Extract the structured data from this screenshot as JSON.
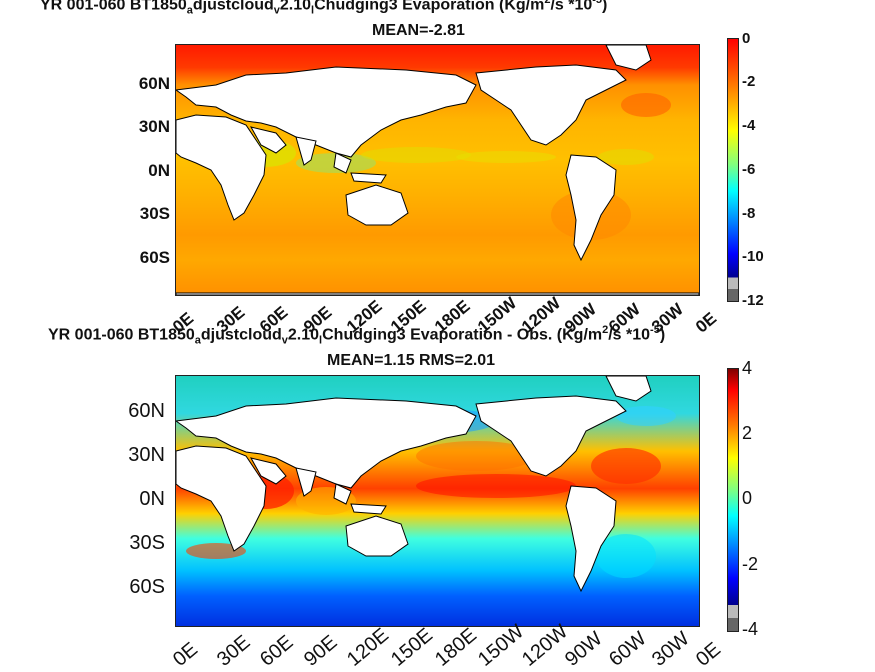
{
  "panel_top": {
    "title_line1_a": "YR 001-060 BT1850",
    "title_sub1": "a",
    "title_line1_b": "djustcloud",
    "title_sub2": "v",
    "title_line1_c": "2.10",
    "title_sub3": "l",
    "title_line1_d": "Chudging3  Evaporation (Kg/m",
    "title_sup1": "2",
    "title_line1_e": "/s *10",
    "title_sup2": "-5",
    "title_line1_f": ")",
    "title_line2": "MEAN=-2.81",
    "lat_labels": [
      "60N",
      "30N",
      "0N",
      "30S",
      "60S"
    ],
    "lon_labels": [
      "0E",
      "30E",
      "60E",
      "90E",
      "120E",
      "150E",
      "180E",
      "150W",
      "120W",
      "90W",
      "60W",
      "30W",
      "0E"
    ],
    "colorbar_labels": [
      "0",
      "-2",
      "-4",
      "-6",
      "-8",
      "-10",
      "-12"
    ]
  },
  "panel_bottom": {
    "title_line1_a": "YR 001-060 BT1850",
    "title_sub1": "a",
    "title_line1_b": "djustcloud",
    "title_sub2": "v",
    "title_line1_c": "2.10",
    "title_sub3": "l",
    "title_line1_d": "Chudging3 Evaporation - Obs. (Kg/m",
    "title_sup1": "2",
    "title_line1_e": "/s *10",
    "title_sup2": "-5",
    "title_line1_f": ")",
    "title_line2": "MEAN=1.15   RMS=2.01",
    "lat_labels": [
      "60N",
      "30N",
      "0N",
      "30S",
      "60S"
    ],
    "lon_labels": [
      "0E",
      "30E",
      "60E",
      "90E",
      "120E",
      "150E",
      "180E",
      "150W",
      "120W",
      "90W",
      "60W",
      "30W",
      "0E"
    ],
    "colorbar_labels": [
      "4",
      "2",
      "0",
      "-2",
      "-4"
    ]
  },
  "colors": {
    "land": "#ffffff",
    "coast": "#000000",
    "jet": [
      "#00008f",
      "#0000ff",
      "#0080ff",
      "#00ffff",
      "#80ff80",
      "#ffff00",
      "#ff8000",
      "#ff0000",
      "#800000"
    ]
  }
}
